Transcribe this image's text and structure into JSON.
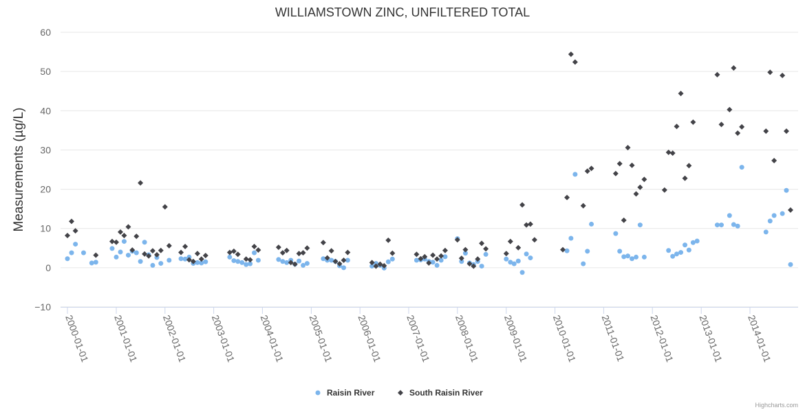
{
  "chart_data": {
    "type": "scatter",
    "title": "WILLIAMSTOWN ZINC, UNFILTERED TOTAL",
    "ylabel": "Measurements (µg/L)",
    "xlabel": "",
    "ylim": [
      -10,
      60
    ],
    "yticks": [
      -10,
      0,
      10,
      20,
      30,
      40,
      50,
      60
    ],
    "yticks_labels": [
      "−10",
      "0",
      "10",
      "20",
      "30",
      "40",
      "50",
      "60"
    ],
    "xlim": [
      "2000-01-01",
      "2015-01-01"
    ],
    "xticks": [
      "2000-01-01",
      "2001-01-01",
      "2002-01-01",
      "2003-01-01",
      "2004-01-01",
      "2005-01-01",
      "2006-01-01",
      "2007-01-01",
      "2008-01-01",
      "2009-01-01",
      "2010-01-01",
      "2011-01-01",
      "2012-01-01",
      "2013-01-01",
      "2014-01-01"
    ],
    "grid": true,
    "legend": "bottom-center",
    "series": [
      {
        "name": "Raisin River",
        "color": "#7cb5ec",
        "marker": "circle",
        "points": [
          [
            "2000-01-01",
            2.3
          ],
          [
            "2000-02-01",
            3.8
          ],
          [
            "2000-03-01",
            6.0
          ],
          [
            "2000-05-01",
            3.8
          ],
          [
            "2000-07-01",
            1.2
          ],
          [
            "2000-08-01",
            1.4
          ],
          [
            "2000-12-01",
            4.9
          ],
          [
            "2001-01-01",
            2.7
          ],
          [
            "2001-02-01",
            4.0
          ],
          [
            "2001-03-01",
            6.7
          ],
          [
            "2001-04-01",
            3.2
          ],
          [
            "2001-05-01",
            4.2
          ],
          [
            "2001-06-01",
            3.8
          ],
          [
            "2001-07-01",
            1.6
          ],
          [
            "2001-08-01",
            6.5
          ],
          [
            "2001-09-01",
            3.3
          ],
          [
            "2001-10-01",
            0.6
          ],
          [
            "2001-11-01",
            2.6
          ],
          [
            "2001-12-01",
            1.1
          ],
          [
            "2002-02-01",
            1.9
          ],
          [
            "2002-05-01",
            2.3
          ],
          [
            "2002-06-01",
            2.2
          ],
          [
            "2002-07-01",
            2.7
          ],
          [
            "2002-08-01",
            1.1
          ],
          [
            "2002-09-01",
            1.3
          ],
          [
            "2002-10-01",
            1.2
          ],
          [
            "2002-11-01",
            1.5
          ],
          [
            "2003-05-01",
            2.7
          ],
          [
            "2003-06-01",
            1.8
          ],
          [
            "2003-07-01",
            1.6
          ],
          [
            "2003-08-01",
            1.3
          ],
          [
            "2003-09-01",
            0.8
          ],
          [
            "2003-10-01",
            1.0
          ],
          [
            "2003-11-01",
            3.8
          ],
          [
            "2003-12-01",
            1.9
          ],
          [
            "2004-05-01",
            2.1
          ],
          [
            "2004-06-01",
            1.6
          ],
          [
            "2004-07-01",
            1.3
          ],
          [
            "2004-08-01",
            1.9
          ],
          [
            "2004-09-01",
            0.9
          ],
          [
            "2004-10-01",
            1.7
          ],
          [
            "2004-11-01",
            0.6
          ],
          [
            "2004-12-01",
            1.1
          ],
          [
            "2005-04-01",
            2.3
          ],
          [
            "2005-05-01",
            1.9
          ],
          [
            "2005-06-01",
            1.9
          ],
          [
            "2005-07-01",
            1.6
          ],
          [
            "2005-08-01",
            0.5
          ],
          [
            "2005-09-01",
            0.0
          ],
          [
            "2005-10-01",
            1.9
          ],
          [
            "2006-04-01",
            0.4
          ],
          [
            "2006-05-01",
            1.1
          ],
          [
            "2006-06-01",
            0.6
          ],
          [
            "2006-07-01",
            -0.1
          ],
          [
            "2006-08-01",
            1.5
          ],
          [
            "2006-09-01",
            2.2
          ],
          [
            "2007-03-01",
            1.9
          ],
          [
            "2007-04-01",
            2.0
          ],
          [
            "2007-05-01",
            2.2
          ],
          [
            "2007-06-01",
            1.6
          ],
          [
            "2007-07-01",
            1.4
          ],
          [
            "2007-08-01",
            0.6
          ],
          [
            "2007-09-01",
            1.9
          ],
          [
            "2007-10-01",
            2.8
          ],
          [
            "2008-01-01",
            7.4
          ],
          [
            "2008-02-01",
            1.6
          ],
          [
            "2008-03-01",
            3.7
          ],
          [
            "2008-04-01",
            1.2
          ],
          [
            "2008-05-01",
            0.8
          ],
          [
            "2008-06-01",
            1.6
          ],
          [
            "2008-07-01",
            0.4
          ],
          [
            "2008-08-01",
            3.4
          ],
          [
            "2009-01-01",
            2.2
          ],
          [
            "2009-02-01",
            1.4
          ],
          [
            "2009-03-01",
            1.0
          ],
          [
            "2009-04-01",
            1.7
          ],
          [
            "2009-05-01",
            -1.2
          ],
          [
            "2009-06-01",
            3.5
          ],
          [
            "2009-07-01",
            2.5
          ],
          [
            "2010-04-01",
            4.3
          ],
          [
            "2010-05-01",
            7.5
          ],
          [
            "2010-06-01",
            23.8
          ],
          [
            "2010-08-01",
            1.0
          ],
          [
            "2010-09-01",
            4.2
          ],
          [
            "2010-10-01",
            11.1
          ],
          [
            "2011-04-01",
            8.7
          ],
          [
            "2011-05-01",
            4.2
          ],
          [
            "2011-06-01",
            2.8
          ],
          [
            "2011-07-01",
            3.0
          ],
          [
            "2011-08-01",
            2.3
          ],
          [
            "2011-09-01",
            2.7
          ],
          [
            "2011-10-01",
            10.9
          ],
          [
            "2011-11-01",
            2.7
          ],
          [
            "2012-05-01",
            4.4
          ],
          [
            "2012-06-01",
            2.9
          ],
          [
            "2012-07-01",
            3.5
          ],
          [
            "2012-08-01",
            3.9
          ],
          [
            "2012-09-01",
            5.8
          ],
          [
            "2012-10-01",
            4.5
          ],
          [
            "2012-11-01",
            6.4
          ],
          [
            "2012-12-01",
            6.8
          ],
          [
            "2013-05-01",
            10.9
          ],
          [
            "2013-06-01",
            10.9
          ],
          [
            "2013-08-01",
            13.3
          ],
          [
            "2013-09-01",
            11.0
          ],
          [
            "2013-10-01",
            10.6
          ],
          [
            "2013-11-01",
            25.6
          ],
          [
            "2014-05-01",
            9.1
          ],
          [
            "2014-06-01",
            11.9
          ],
          [
            "2014-07-01",
            13.3
          ],
          [
            "2014-09-01",
            13.8
          ],
          [
            "2014-10-01",
            19.7
          ],
          [
            "2014-11-01",
            0.8
          ]
        ]
      },
      {
        "name": "South Raisin River",
        "color": "#434348",
        "marker": "diamond",
        "points": [
          [
            "2000-01-01",
            8.2
          ],
          [
            "2000-02-01",
            11.8
          ],
          [
            "2000-03-01",
            9.4
          ],
          [
            "2000-08-01",
            3.2
          ],
          [
            "2000-12-01",
            6.7
          ],
          [
            "2001-01-01",
            6.5
          ],
          [
            "2001-02-01",
            9.1
          ],
          [
            "2001-03-01",
            8.2
          ],
          [
            "2001-04-01",
            10.4
          ],
          [
            "2001-05-01",
            4.5
          ],
          [
            "2001-06-01",
            8.0
          ],
          [
            "2001-07-01",
            21.6
          ],
          [
            "2001-08-01",
            3.5
          ],
          [
            "2001-09-01",
            3.0
          ],
          [
            "2001-10-01",
            4.3
          ],
          [
            "2001-11-01",
            3.3
          ],
          [
            "2001-12-01",
            4.4
          ],
          [
            "2002-01-01",
            15.5
          ],
          [
            "2002-02-01",
            5.6
          ],
          [
            "2002-05-01",
            3.9
          ],
          [
            "2002-06-01",
            5.4
          ],
          [
            "2002-07-01",
            2.0
          ],
          [
            "2002-08-01",
            1.6
          ],
          [
            "2002-09-01",
            3.6
          ],
          [
            "2002-10-01",
            2.2
          ],
          [
            "2002-11-01",
            3.1
          ],
          [
            "2003-05-01",
            3.9
          ],
          [
            "2003-06-01",
            4.2
          ],
          [
            "2003-07-01",
            3.4
          ],
          [
            "2003-09-01",
            2.2
          ],
          [
            "2003-10-01",
            2.0
          ],
          [
            "2003-11-01",
            5.4
          ],
          [
            "2003-12-01",
            4.5
          ],
          [
            "2004-05-01",
            5.2
          ],
          [
            "2004-06-01",
            3.8
          ],
          [
            "2004-07-01",
            4.4
          ],
          [
            "2004-08-01",
            1.3
          ],
          [
            "2004-09-01",
            0.9
          ],
          [
            "2004-10-01",
            3.6
          ],
          [
            "2004-11-01",
            3.8
          ],
          [
            "2004-12-01",
            5.0
          ],
          [
            "2005-04-01",
            6.4
          ],
          [
            "2005-05-01",
            2.5
          ],
          [
            "2005-06-01",
            4.3
          ],
          [
            "2005-07-01",
            1.6
          ],
          [
            "2005-08-01",
            1.0
          ],
          [
            "2005-09-01",
            1.9
          ],
          [
            "2005-10-01",
            3.9
          ],
          [
            "2006-04-01",
            1.3
          ],
          [
            "2006-05-01",
            0.4
          ],
          [
            "2006-06-01",
            0.9
          ],
          [
            "2006-07-01",
            0.5
          ],
          [
            "2006-08-01",
            7.0
          ],
          [
            "2006-09-01",
            3.7
          ],
          [
            "2007-03-01",
            3.4
          ],
          [
            "2007-04-01",
            2.3
          ],
          [
            "2007-05-01",
            2.8
          ],
          [
            "2007-06-01",
            1.2
          ],
          [
            "2007-07-01",
            3.2
          ],
          [
            "2007-08-01",
            2.2
          ],
          [
            "2007-09-01",
            3.0
          ],
          [
            "2007-10-01",
            4.4
          ],
          [
            "2008-01-01",
            7.1
          ],
          [
            "2008-02-01",
            2.4
          ],
          [
            "2008-03-01",
            4.6
          ],
          [
            "2008-04-01",
            1.0
          ],
          [
            "2008-05-01",
            0.4
          ],
          [
            "2008-06-01",
            2.2
          ],
          [
            "2008-07-01",
            6.2
          ],
          [
            "2008-08-01",
            4.8
          ],
          [
            "2009-01-01",
            3.6
          ],
          [
            "2009-02-01",
            6.7
          ],
          [
            "2009-04-01",
            5.1
          ],
          [
            "2009-05-01",
            16.0
          ],
          [
            "2009-06-01",
            10.9
          ],
          [
            "2009-07-01",
            11.1
          ],
          [
            "2009-08-01",
            7.1
          ],
          [
            "2010-03-01",
            4.6
          ],
          [
            "2010-04-01",
            17.9
          ],
          [
            "2010-05-01",
            54.4
          ],
          [
            "2010-06-01",
            52.4
          ],
          [
            "2010-08-01",
            15.8
          ],
          [
            "2010-09-01",
            24.6
          ],
          [
            "2010-10-01",
            25.3
          ],
          [
            "2011-04-01",
            24.0
          ],
          [
            "2011-05-01",
            26.5
          ],
          [
            "2011-06-01",
            12.1
          ],
          [
            "2011-07-01",
            30.6
          ],
          [
            "2011-08-01",
            26.1
          ],
          [
            "2011-09-01",
            18.8
          ],
          [
            "2011-10-01",
            20.5
          ],
          [
            "2011-11-01",
            22.5
          ],
          [
            "2012-04-01",
            19.8
          ],
          [
            "2012-05-01",
            29.4
          ],
          [
            "2012-06-01",
            29.2
          ],
          [
            "2012-07-01",
            36.0
          ],
          [
            "2012-08-01",
            44.4
          ],
          [
            "2012-09-01",
            22.8
          ],
          [
            "2012-10-01",
            26.0
          ],
          [
            "2012-11-01",
            37.1
          ],
          [
            "2013-05-01",
            49.2
          ],
          [
            "2013-06-01",
            36.5
          ],
          [
            "2013-08-01",
            40.3
          ],
          [
            "2013-09-01",
            50.9
          ],
          [
            "2013-10-01",
            34.3
          ],
          [
            "2013-11-01",
            35.9
          ],
          [
            "2014-05-01",
            34.8
          ],
          [
            "2014-06-01",
            49.8
          ],
          [
            "2014-07-01",
            27.3
          ],
          [
            "2014-09-01",
            49.0
          ],
          [
            "2014-10-01",
            34.8
          ],
          [
            "2014-11-01",
            14.7
          ]
        ]
      }
    ]
  },
  "credits": "Highcharts.com"
}
